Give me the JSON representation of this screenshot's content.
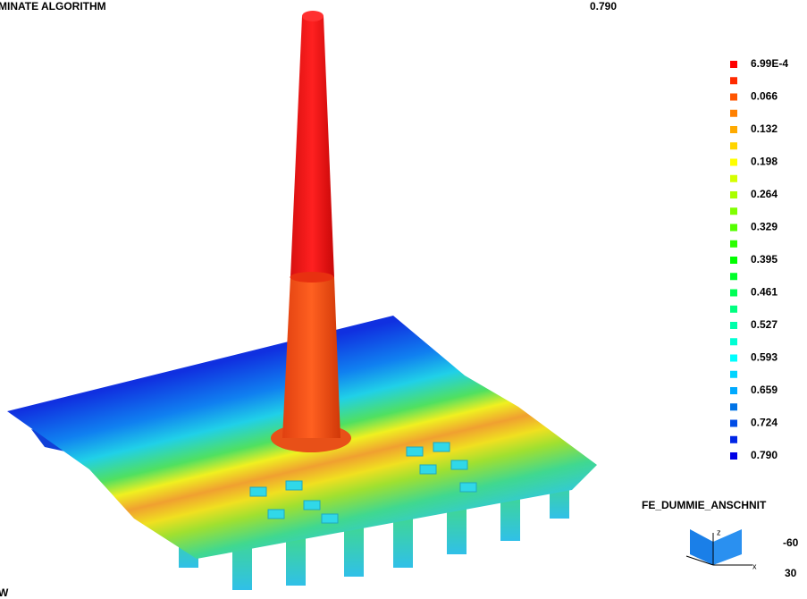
{
  "header": {
    "title": "MINATE ALGORITHM",
    "value": "0.790"
  },
  "legend": {
    "labels": [
      "6.99E-4",
      "0.066",
      "0.132",
      "0.198",
      "0.264",
      "0.329",
      "0.395",
      "0.461",
      "0.527",
      "0.593",
      "0.659",
      "0.724",
      "0.790"
    ]
  },
  "model": {
    "name": "FE_DUMMIE_ANSCHNIT",
    "angles": [
      "-60",
      "30"
    ]
  },
  "footer": {
    "text": "W"
  }
}
